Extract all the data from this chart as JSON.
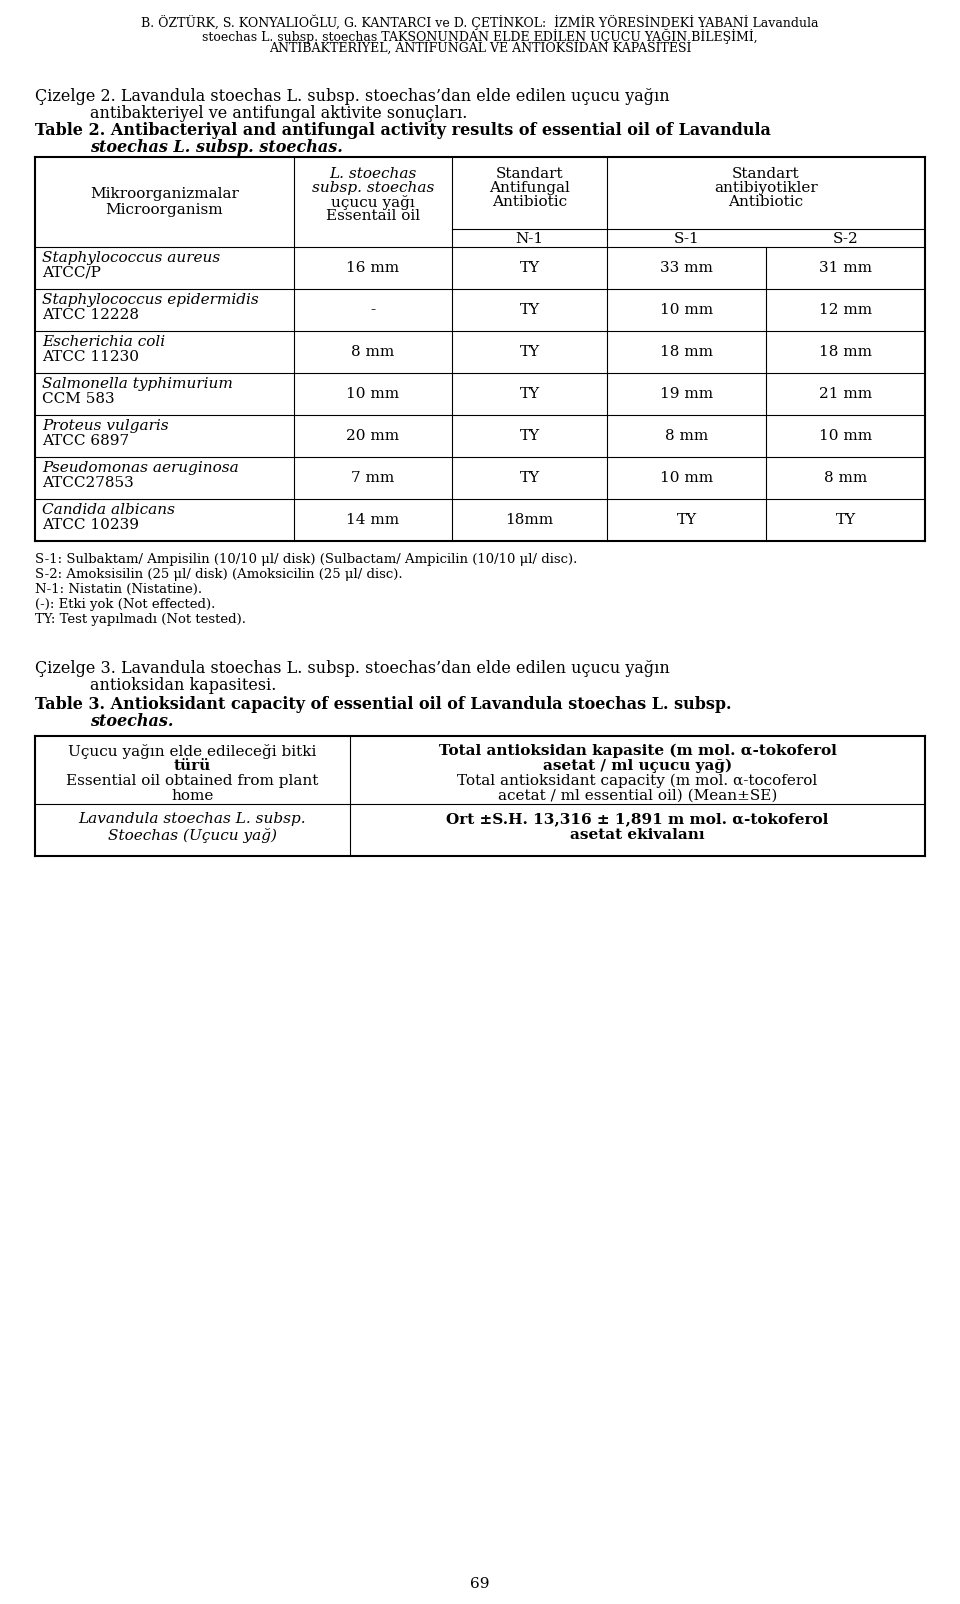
{
  "page_header_line1": "B. ÖZTÜRK, S. KONYALIOĞLU, G. KANTARCI ve D. ÇETİNKOL:  İZMİR YÖRESİNDEKİ YABANİ Lavandula",
  "page_header_line2": "stoechas L. subsp. stoechas TAKSONUNDAN ELDE EDİLEN UÇUCU YAĞIN BİLEŞİMİ,",
  "page_header_line3": "ANTİBAKTERİYEL, ANTİFUNGAL VE ANTİOKSİDAN KAPASİTESİ",
  "table_rows": [
    {
      "organism_italic": "Staphylococcus aureus",
      "organism_code": "ATCC/P",
      "oil": "16 mm",
      "n1": "TY",
      "s1": "33 mm",
      "s2": "31 mm"
    },
    {
      "organism_italic": "Staphylococcus epidermidis",
      "organism_code": "ATCC 12228",
      "oil": "-",
      "n1": "TY",
      "s1": "10 mm",
      "s2": "12 mm"
    },
    {
      "organism_italic": "Escherichia coli",
      "organism_code": "ATCC 11230",
      "oil": "8 mm",
      "n1": "TY",
      "s1": "18 mm",
      "s2": "18 mm"
    },
    {
      "organism_italic": "Salmonella typhimurium",
      "organism_code": "CCM 583",
      "oil": "10 mm",
      "n1": "TY",
      "s1": "19 mm",
      "s2": "21 mm"
    },
    {
      "organism_italic": "Proteus vulgaris",
      "organism_code": "ATCC 6897",
      "oil": "20 mm",
      "n1": "TY",
      "s1": "8 mm",
      "s2": "10 mm"
    },
    {
      "organism_italic": "Pseudomonas aeruginosa",
      "organism_code": "ATCC27853",
      "oil": "7 mm",
      "n1": "TY",
      "s1": "10 mm",
      "s2": "8 mm"
    },
    {
      "organism_italic": "Candida albicans",
      "organism_code": "ATCC 10239",
      "oil": "14 mm",
      "n1": "18mm",
      "s1": "TY",
      "s2": "TY"
    }
  ],
  "footnotes": [
    "S-1: Sulbaktam/ Ampisilin (10/10 μl/ disk) (Sulbactam/ Ampicilin (10/10 μl/ disc).",
    "S-2: Amoksisilin (25 μl/ disk) (Amoksicilin (25 μl/ disc).",
    "N-1: Nistatin (Nistatine).",
    "(-): Etki yok (Not effected).",
    "TY: Test yapılmadı (Not tested)."
  ],
  "bg_color": "#ffffff"
}
